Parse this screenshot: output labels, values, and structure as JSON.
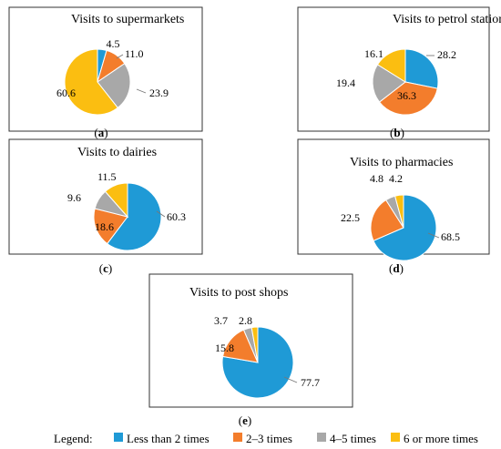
{
  "colors": {
    "less_than_2": "#1f9ad6",
    "two_to_3": "#f37d2c",
    "four_to_5": "#a8a8a8",
    "six_plus": "#fbbe11"
  },
  "legend": {
    "label": "Legend:",
    "items": [
      {
        "name": "Less than 2 times",
        "color_key": "less_than_2"
      },
      {
        "name": "2–3 times",
        "color_key": "two_to_3"
      },
      {
        "name": "4–5 times",
        "color_key": "four_to_5"
      },
      {
        "name": "6 or more times",
        "color_key": "six_plus"
      }
    ]
  },
  "chart_data": [
    {
      "type": "pie",
      "title": "Visits to supermarkets",
      "caption_letter": "a",
      "categories": [
        "Less than 2 times",
        "2–3 times",
        "4–5 times",
        "6 or more times"
      ],
      "values": [
        4.5,
        11.0,
        23.9,
        60.6
      ],
      "value_labels": [
        "4.5",
        "11.0",
        "23.9",
        "60.6"
      ]
    },
    {
      "type": "pie",
      "title": "Visits to petrol stations",
      "caption_letter": "b",
      "categories": [
        "Less than 2 times",
        "2–3 times",
        "4–5 times",
        "6 or more times"
      ],
      "values": [
        28.2,
        36.3,
        19.4,
        16.1
      ],
      "value_labels": [
        "28.2",
        "36.3",
        "19.4",
        "16.1"
      ]
    },
    {
      "type": "pie",
      "title": "Visits to dairies",
      "caption_letter": "c",
      "categories": [
        "Less than 2 times",
        "2–3 times",
        "4–5 times",
        "6 or more times"
      ],
      "values": [
        60.3,
        18.6,
        9.6,
        11.5
      ],
      "value_labels": [
        "60.3",
        "18.6",
        "9.6",
        "11.5"
      ]
    },
    {
      "type": "pie",
      "title": "Visits to pharmacies",
      "caption_letter": "d",
      "categories": [
        "Less than 2 times",
        "2–3 times",
        "4–5 times",
        "6 or more times"
      ],
      "values": [
        68.5,
        22.5,
        4.8,
        4.2
      ],
      "value_labels": [
        "68.5",
        "22.5",
        "4.8",
        "4.2"
      ]
    },
    {
      "type": "pie",
      "title": "Visits to post shops",
      "caption_letter": "e",
      "categories": [
        "Less than 2 times",
        "2–3 times",
        "4–5 times",
        "6 or more times"
      ],
      "values": [
        77.7,
        15.8,
        3.7,
        2.8
      ],
      "value_labels": [
        "77.7",
        "15.8",
        "3.7",
        "2.8"
      ]
    }
  ]
}
